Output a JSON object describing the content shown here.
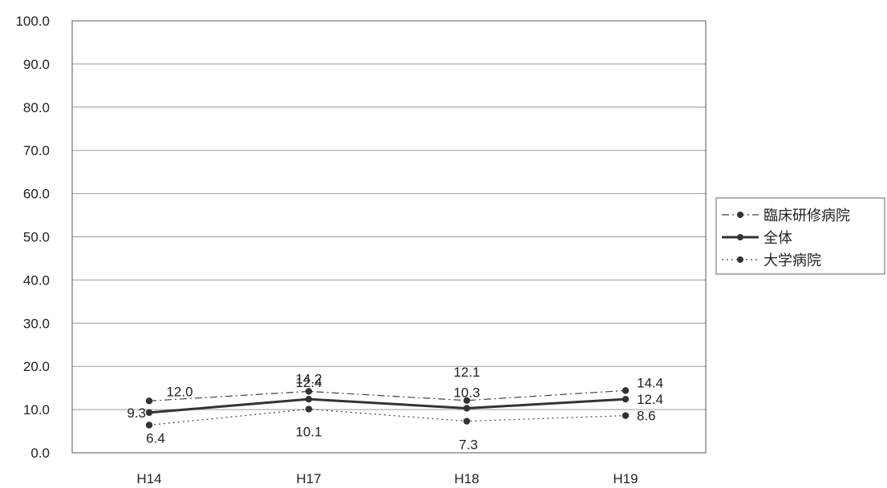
{
  "chart_data": {
    "type": "line",
    "categories": [
      "H14",
      "H17",
      "H18",
      "H19"
    ],
    "ylim": [
      0,
      100
    ],
    "yticks": [
      "0.0",
      "10.0",
      "20.0",
      "30.0",
      "40.0",
      "50.0",
      "60.0",
      "70.0",
      "80.0",
      "90.0",
      "100.0"
    ],
    "grid": true,
    "legend_position": "right",
    "series": [
      {
        "name": "臨床研修病院",
        "values": [
          12.0,
          14.2,
          12.1,
          14.4
        ],
        "labels": [
          "12.0",
          "14.2",
          "12.1",
          "14.4"
        ],
        "style": "dash-dot",
        "color": "#444444"
      },
      {
        "name": "全体",
        "values": [
          9.3,
          12.4,
          10.3,
          12.4
        ],
        "labels": [
          "9.3",
          "12.4",
          "10.3",
          "12.4"
        ],
        "style": "solid",
        "color": "#333333"
      },
      {
        "name": "大学病院",
        "values": [
          6.4,
          10.1,
          7.3,
          8.6
        ],
        "labels": [
          "6.4",
          "10.1",
          "7.3",
          "8.6"
        ],
        "style": "dotted",
        "color": "#444444"
      }
    ]
  }
}
